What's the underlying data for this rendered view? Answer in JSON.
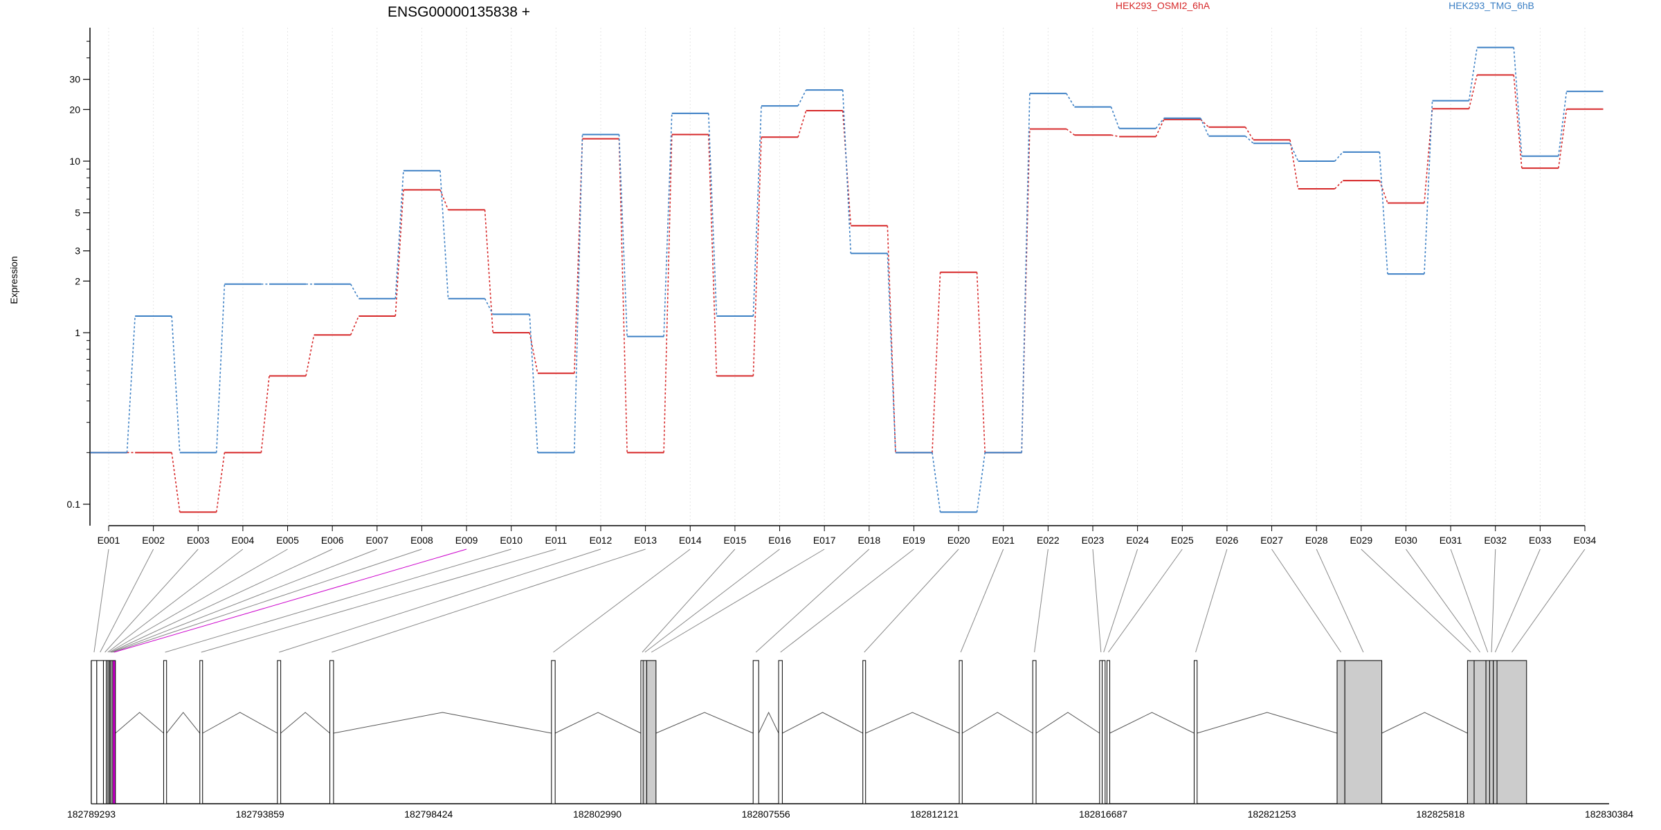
{
  "chart_data": {
    "type": "line",
    "title": "ENSG00000135838 +",
    "ylabel": "Expression",
    "yscale": "log",
    "ylim": [
      0.075,
      60
    ],
    "yticks": [
      {
        "value": 0.1,
        "label": "0.1"
      },
      {
        "value": 1,
        "label": "1"
      },
      {
        "value": 2,
        "label": "2"
      },
      {
        "value": 3,
        "label": "3"
      },
      {
        "value": 5,
        "label": "5"
      },
      {
        "value": 10,
        "label": "10"
      },
      {
        "value": 20,
        "label": "20"
      },
      {
        "value": 30,
        "label": "30"
      }
    ],
    "grid": true,
    "legend_position": "top-right",
    "categories": [
      "E001",
      "E002",
      "E003",
      "E004",
      "E005",
      "E006",
      "E007",
      "E008",
      "E009",
      "E010",
      "E011",
      "E012",
      "E013",
      "E014",
      "E015",
      "E016",
      "E017",
      "E018",
      "E019",
      "E020",
      "E021",
      "E022",
      "E023",
      "E024",
      "E025",
      "E026",
      "E027",
      "E028",
      "E029",
      "E030",
      "E031",
      "E032",
      "E033",
      "E034"
    ],
    "series": [
      {
        "name": "HEK293_OSMI2_6hA",
        "color": "#d62728",
        "values": [
          0.2,
          0.2,
          0.09,
          0.2,
          0.56,
          0.97,
          1.25,
          6.8,
          5.2,
          1.0,
          0.58,
          13.5,
          0.2,
          14.3,
          0.56,
          13.8,
          19.7,
          4.2,
          0.2,
          2.25,
          0.2,
          15.4,
          14.2,
          13.9,
          17.5,
          15.8,
          13.3,
          6.9,
          7.7,
          5.7,
          20.2,
          31.8,
          9.1,
          20.1
        ]
      },
      {
        "name": "HEK293_TMG_6hB",
        "color": "#3b7fc4",
        "values": [
          0.2,
          1.25,
          0.2,
          1.92,
          1.92,
          1.92,
          1.58,
          8.8,
          1.58,
          1.28,
          0.2,
          14.3,
          0.95,
          19.0,
          1.25,
          21.0,
          26.0,
          2.9,
          0.2,
          0.09,
          0.2,
          24.8,
          20.7,
          15.5,
          17.8,
          14.0,
          12.7,
          10.0,
          11.3,
          2.2,
          22.5,
          46.0,
          10.7,
          25.5
        ]
      }
    ],
    "genomic_ticks": [
      "182789293",
      "182793859",
      "182798424",
      "182802990",
      "182807556",
      "182812121",
      "182816687",
      "182821253",
      "182825818",
      "182830384"
    ],
    "gene_model": {
      "start": 182789293,
      "end": 182830384,
      "highlight_color": "#cc00cc",
      "exon_fill": "#cccccc",
      "exons": [
        {
          "id": "E001",
          "start": 182789293,
          "end": 182789440,
          "filled": false
        },
        {
          "id": "E002",
          "start": 182789440,
          "end": 182789620,
          "filled": false
        },
        {
          "id": "E003",
          "start": 182789620,
          "end": 182789700,
          "filled": false
        },
        {
          "id": "E004",
          "start": 182789700,
          "end": 182789740,
          "filled": false
        },
        {
          "id": "E005",
          "start": 182789740,
          "end": 182789775,
          "filled": false
        },
        {
          "id": "E006",
          "start": 182789775,
          "end": 182789800,
          "filled": false
        },
        {
          "id": "E007",
          "start": 182789800,
          "end": 182789830,
          "filled": false
        },
        {
          "id": "E008",
          "start": 182789830,
          "end": 182789870,
          "filled": false
        },
        {
          "id": "E009",
          "start": 182789870,
          "end": 182789895,
          "filled": false
        },
        {
          "id": "E010",
          "start": 182791250,
          "end": 182791330,
          "filled": false
        },
        {
          "id": "E011",
          "start": 182792230,
          "end": 182792290,
          "filled": false
        },
        {
          "id": "E012",
          "start": 182794330,
          "end": 182794420,
          "filled": false
        },
        {
          "id": "E013",
          "start": 182795750,
          "end": 182795850,
          "filled": false
        },
        {
          "id": "E014",
          "start": 182801750,
          "end": 182801850,
          "filled": false
        },
        {
          "id": "E015",
          "start": 182804170,
          "end": 182804230,
          "filled": false
        },
        {
          "id": "E016",
          "start": 182804230,
          "end": 182804330,
          "filled": true
        },
        {
          "id": "E017",
          "start": 182804330,
          "end": 182804580,
          "filled": true
        },
        {
          "id": "E018",
          "start": 182807210,
          "end": 182807360,
          "filled": false
        },
        {
          "id": "E019",
          "start": 182807900,
          "end": 182808000,
          "filled": false
        },
        {
          "id": "E020",
          "start": 182810180,
          "end": 182810240,
          "filled": false
        },
        {
          "id": "E021",
          "start": 182812790,
          "end": 182812870,
          "filled": false
        },
        {
          "id": "E022",
          "start": 182814780,
          "end": 182814870,
          "filled": false
        },
        {
          "id": "E023",
          "start": 182816590,
          "end": 182816660,
          "filled": false
        },
        {
          "id": "E024",
          "start": 182816660,
          "end": 182816740,
          "filled": false
        },
        {
          "id": "E025",
          "start": 182816790,
          "end": 182816860,
          "filled": false
        },
        {
          "id": "E026",
          "start": 182819150,
          "end": 182819230,
          "filled": false
        },
        {
          "id": "E027",
          "start": 182823020,
          "end": 182823230,
          "filled": true
        },
        {
          "id": "E028",
          "start": 182823230,
          "end": 182824230,
          "filled": true
        },
        {
          "id": "E029",
          "start": 182826550,
          "end": 182826730,
          "filled": true
        },
        {
          "id": "E030",
          "start": 182826730,
          "end": 182827050,
          "filled": true
        },
        {
          "id": "E031",
          "start": 182827050,
          "end": 182827150,
          "filled": true
        },
        {
          "id": "E032",
          "start": 182827150,
          "end": 182827250,
          "filled": true
        },
        {
          "id": "E033",
          "start": 182827250,
          "end": 182827350,
          "filled": true
        },
        {
          "id": "E034",
          "start": 182827350,
          "end": 182828150,
          "filled": true
        }
      ]
    }
  }
}
